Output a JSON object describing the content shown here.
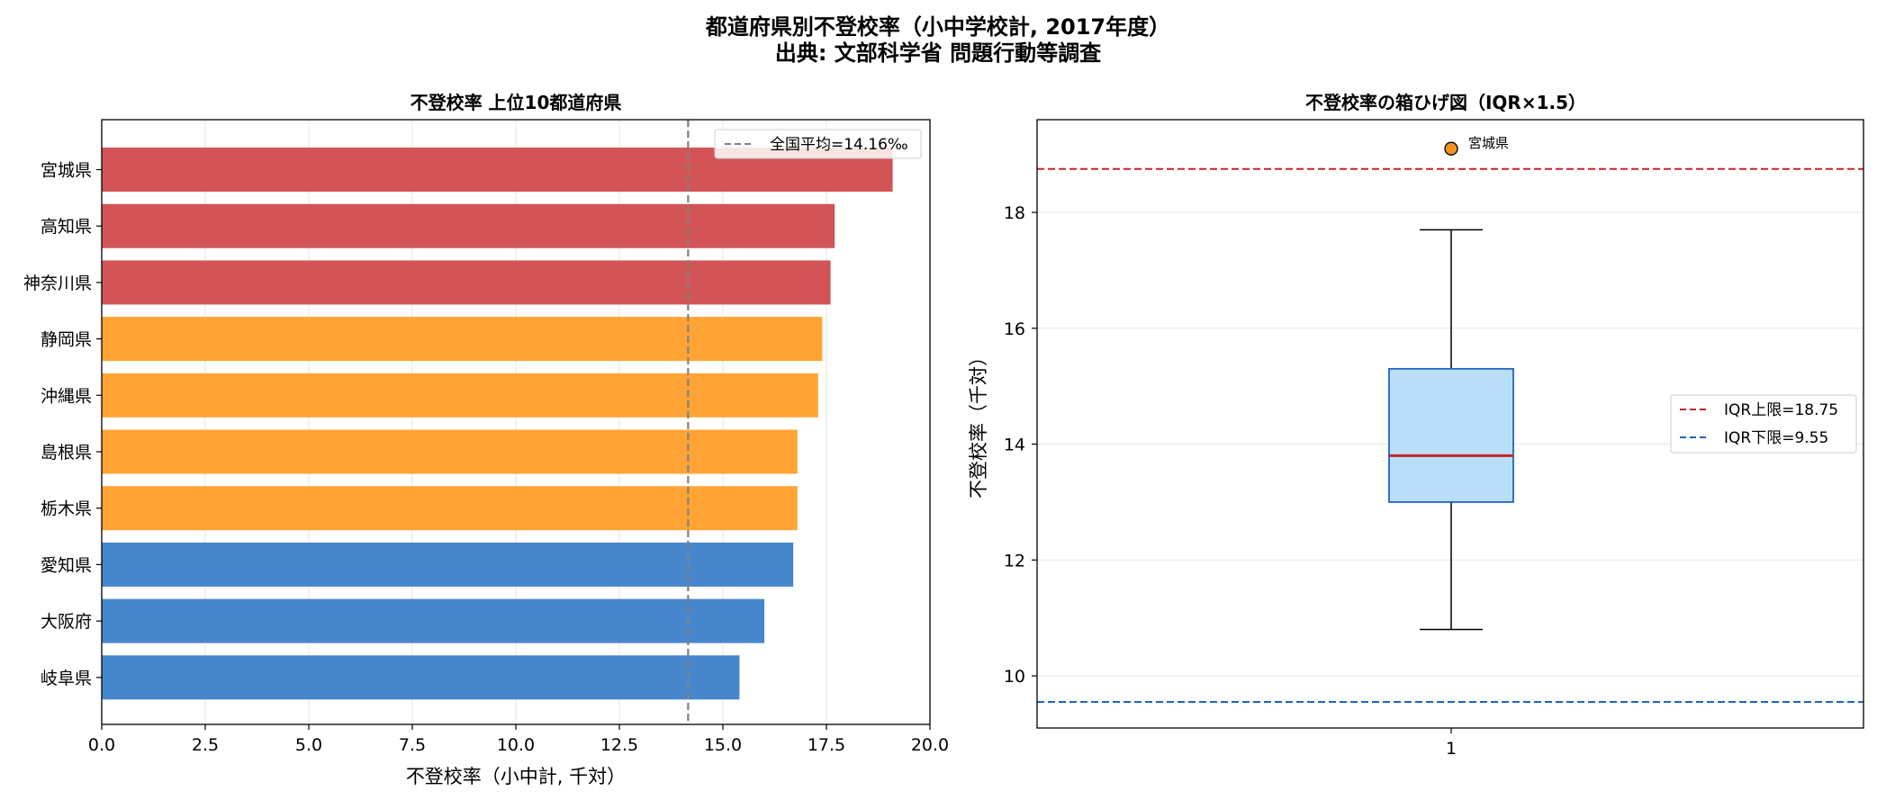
{
  "suptitle": [
    "都道府県別不登校率（小中学校計, 2017年度）",
    "出典: 文部科学省 問題行動等調査"
  ],
  "colors": {
    "top3": "#d35456",
    "mid": "#ffa434",
    "rest": "#4686cd",
    "mean_line": "#808080",
    "box_fill": "#bbdef8",
    "box_edge": "#1d65bf",
    "median": "#c9242b",
    "upper_fence": "#c9242b",
    "lower_fence": "#1d65bf",
    "outlier": "#f5931d",
    "grid": "#e6e6e6"
  },
  "chart_data": [
    {
      "type": "bar",
      "orientation": "horizontal",
      "title": "不登校率 上位10都道府県",
      "xlabel": "不登校率（小中計, 千対）",
      "ylabel": "",
      "categories": [
        "宮城県",
        "高知県",
        "神奈川県",
        "静岡県",
        "沖縄県",
        "島根県",
        "栃木県",
        "愛知県",
        "大阪府",
        "岐阜県"
      ],
      "values": [
        19.1,
        17.7,
        17.6,
        17.4,
        17.3,
        16.8,
        16.8,
        16.7,
        16.0,
        15.4
      ],
      "color_groups": [
        "top3",
        "top3",
        "top3",
        "mid",
        "mid",
        "mid",
        "mid",
        "rest",
        "rest",
        "rest"
      ],
      "xlim": [
        0,
        20
      ],
      "xticks": [
        "0.0",
        "2.5",
        "5.0",
        "7.5",
        "10.0",
        "12.5",
        "15.0",
        "17.5",
        "20.0"
      ],
      "reference_line": {
        "value": 14.16,
        "label": "全国平均=14.16‰"
      },
      "legend": "top-right",
      "grid": "x"
    },
    {
      "type": "box",
      "title": "不登校率の箱ひげ図（IQR×1.5）",
      "ylabel": "不登校率（千対）",
      "xticks": [
        "1"
      ],
      "ylim": [
        9.1,
        19.6
      ],
      "yticks": [
        "10",
        "12",
        "14",
        "16",
        "18"
      ],
      "box": {
        "q1": 13.0,
        "median": 13.8,
        "q3": 15.3,
        "whisker_low": 10.8,
        "whisker_high": 17.7
      },
      "outliers": [
        {
          "value": 19.1,
          "label": "宮城県"
        }
      ],
      "fences": [
        {
          "value": 18.75,
          "label": "IQR上限=18.75"
        },
        {
          "value": 9.55,
          "label": "IQR下限=9.55"
        }
      ],
      "legend": "center-right",
      "grid": "y"
    }
  ]
}
